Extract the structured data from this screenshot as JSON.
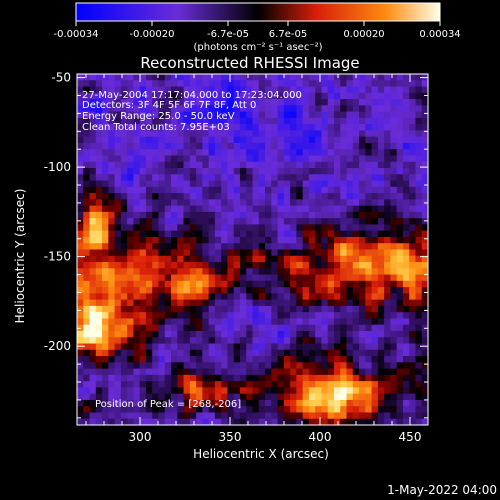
{
  "chart_data": {
    "type": "heatmap",
    "title": "Reconstructed RHESSI Image",
    "xlabel": "Heliocentric X (arcsec)",
    "ylabel": "Heliocentric Y (arcsec)",
    "xlim": [
      265,
      460
    ],
    "ylim": [
      -244,
      -48
    ],
    "x_ticks": [
      300,
      350,
      400,
      450
    ],
    "y_ticks": [
      -50,
      -100,
      -150,
      -200
    ],
    "colorbar": {
      "range": [
        -0.00034,
        0.00034
      ],
      "ticks": [
        "-0.00034",
        "-0.00020",
        "-6.7e-05",
        "6.7e-05",
        "0.00020",
        "0.00034"
      ],
      "units_label": "(photons cm⁻² s⁻¹ asec⁻²)"
    },
    "annotations": [
      "27-May-2004 17:17:04.000 to 17:23:04.000",
      "Detectors: 3F 4F 5F 6F 7F 8F, Att 0",
      "Energy Range: 25.0 - 50.0 keV",
      "Clean    Total counts: 7.95E+03"
    ],
    "peak_label": "Position of Peak = [268,-206]",
    "peak": {
      "x": 268,
      "y": -206
    },
    "footer": "1-May-2022 04:00",
    "grid_description": "noisy intensity map: upper region negative (blue/purple), lower band positive (red/orange/yellow) with hot spots bottom-left and bottom-right",
    "colors": {
      "neg_max": "#0000ff",
      "neg_mid": "#6a2cd8",
      "zero": "#000000",
      "pos_mid": "#d81e0a",
      "pos_high": "#ff8a10",
      "pos_max": "#ffffe8"
    }
  }
}
